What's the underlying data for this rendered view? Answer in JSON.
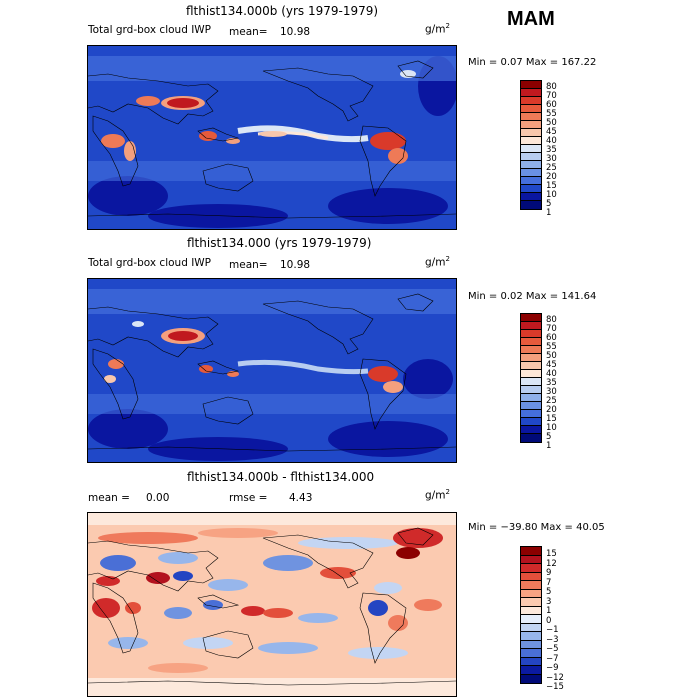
{
  "season": "MAM",
  "panels": [
    {
      "title": "flthist134.000b (yrs 1979-1979)",
      "subtitle": "Total grd-box cloud IWP",
      "mean_label": "mean=",
      "mean_value": "10.98",
      "units": "g/m",
      "units_exp": "2",
      "range_text": "Min =    0.07 Max = 167.22",
      "colorbar_labels": [
        "80",
        "70",
        "60",
        "55",
        "50",
        "45",
        "40",
        "35",
        "30",
        "25",
        "20",
        "15",
        "10",
        "5",
        "1"
      ]
    },
    {
      "title": "flthist134.000 (yrs 1979-1979)",
      "subtitle": "Total grd-box cloud IWP",
      "mean_label": "mean=",
      "mean_value": "10.98",
      "units": "g/m",
      "units_exp": "2",
      "range_text": "Min =    0.02 Max = 141.64",
      "colorbar_labels": [
        "80",
        "70",
        "60",
        "55",
        "50",
        "45",
        "40",
        "35",
        "30",
        "25",
        "20",
        "15",
        "10",
        "5",
        "1"
      ]
    },
    {
      "title": "flthist134.000b - flthist134.000",
      "mean_label": "mean =",
      "mean_value": "0.00",
      "rmse_label": "rmse =",
      "rmse_value": "4.43",
      "units": "g/m",
      "units_exp": "2",
      "range_text": "Min = −39.80 Max =  40.05",
      "colorbar_labels": [
        "15",
        "12",
        "9",
        "7",
        "5",
        "3",
        "1",
        "0",
        "−1",
        "−3",
        "−5",
        "−7",
        "−9",
        "−12",
        "−15"
      ]
    }
  ],
  "colors": {
    "abs_scale": [
      "#8b0000",
      "#c0191f",
      "#d93a2a",
      "#e65a3c",
      "#ee7a57",
      "#f4a07e",
      "#f8c7ac",
      "#fde7d8",
      "#dbe6f6",
      "#b8cdf0",
      "#8fb0ea",
      "#6a91e4",
      "#456fdc",
      "#2048c8",
      "#0a16a0",
      "#000a78"
    ],
    "diff_scale": [
      "#8b0000",
      "#b3121e",
      "#d02a2a",
      "#e34f3b",
      "#ef7a5c",
      "#f7a383",
      "#fbcab0",
      "#fde9dc",
      "#e6eefb",
      "#c3d5f3",
      "#97b6eb",
      "#6f93e0",
      "#4a6fd6",
      "#2445c2",
      "#0b1aa0",
      "#000a78"
    ]
  }
}
